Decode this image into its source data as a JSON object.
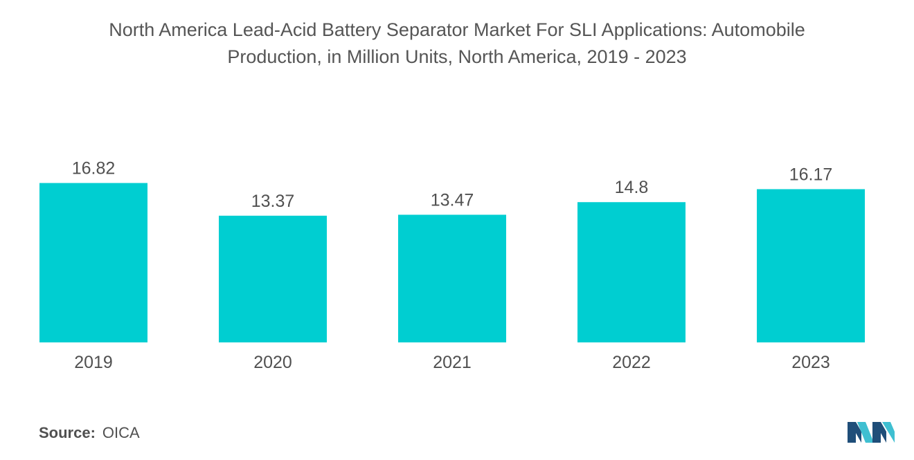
{
  "title_lines": [
    "North America Lead-Acid Battery Separator Market For SLI Applications: Automobile",
    "Production, in Million Units, North America, 2019 - 2023"
  ],
  "source": {
    "label": "Source:",
    "value": "OICA"
  },
  "colors": {
    "bar": "#00CED1",
    "text": "#505050",
    "logo_dark": "#1F4E79",
    "logo_light": "#3FBFD1"
  },
  "chart_data": {
    "type": "bar",
    "title": "North America Lead-Acid Battery Separator Market For SLI Applications: Automobile Production, in Million Units, North America, 2019 - 2023",
    "categories": [
      "2019",
      "2020",
      "2021",
      "2022",
      "2023"
    ],
    "values": [
      16.82,
      13.37,
      13.47,
      14.8,
      16.17
    ],
    "value_labels": [
      "16.82",
      "13.37",
      "13.47",
      "14.8",
      "16.17"
    ],
    "xlabel": "",
    "ylabel": "",
    "grid": false,
    "legend": "none"
  }
}
